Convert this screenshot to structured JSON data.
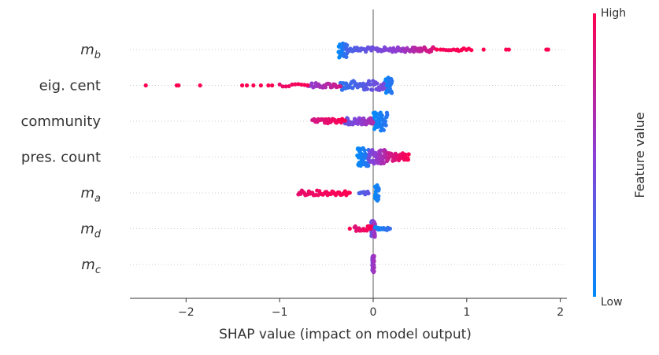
{
  "chart_data": {
    "type": "scatter",
    "subtype": "shap-beeswarm",
    "xlabel": "SHAP value (impact on model output)",
    "xlim": [
      -2.6,
      2.07
    ],
    "xticks": [
      -2,
      -1,
      0,
      1,
      2
    ],
    "xtick_labels": [
      "−2",
      "−1",
      "0",
      "1",
      "2"
    ],
    "colorbar": {
      "title": "Feature value",
      "high_label": "High",
      "low_label": "Low",
      "low_color": "#008bfb",
      "high_color": "#ff0051"
    },
    "features": [
      {
        "label": "m",
        "sub": "b",
        "italic": true,
        "clusters": [
          {
            "from": -0.37,
            "to": -0.28,
            "n": 40,
            "spread": 10,
            "c0": 0.0,
            "c1": 0.2
          },
          {
            "from": -0.28,
            "to": 0.3,
            "n": 50,
            "spread": 3,
            "c0": 0.25,
            "c1": 0.55
          },
          {
            "from": 0.3,
            "to": 0.65,
            "n": 35,
            "spread": 3,
            "c0": 0.55,
            "c1": 0.85
          },
          {
            "from": 0.75,
            "to": 1.05,
            "n": 12,
            "spread": 2,
            "c0": 0.95,
            "c1": 1.0
          }
        ],
        "points": [
          1.18,
          1.42,
          1.45,
          1.85,
          1.87,
          0.68,
          0.72,
          0.9,
          0.95,
          1.0
        ]
      },
      {
        "label": "eig. cent",
        "sub": "",
        "italic": false,
        "clusters": [
          {
            "from": 0.12,
            "to": 0.2,
            "n": 40,
            "spread": 10,
            "c0": 0.0,
            "c1": 0.15
          },
          {
            "from": -0.35,
            "to": 0.12,
            "n": 55,
            "spread": 6,
            "c0": 0.15,
            "c1": 0.45
          },
          {
            "from": -0.7,
            "to": -0.35,
            "n": 25,
            "spread": 3,
            "c0": 0.5,
            "c1": 0.8
          },
          {
            "from": -1.0,
            "to": -0.7,
            "n": 10,
            "spread": 2,
            "c0": 0.9,
            "c1": 1.0
          }
        ],
        "points": [
          -2.43,
          -2.1,
          -2.08,
          -1.85,
          -1.4,
          -1.35,
          -1.28,
          -1.2,
          -1.12,
          -1.08
        ]
      },
      {
        "label": "community",
        "sub": "",
        "italic": false,
        "clusters": [
          {
            "from": 0.0,
            "to": 0.15,
            "n": 45,
            "spread": 12,
            "c0": 0.0,
            "c1": 0.15
          },
          {
            "from": -0.3,
            "to": 0.0,
            "n": 45,
            "spread": 4,
            "c0": 0.35,
            "c1": 0.65
          },
          {
            "from": -0.65,
            "to": -0.3,
            "n": 35,
            "spread": 3,
            "c0": 0.8,
            "c1": 1.0
          }
        ],
        "points": []
      },
      {
        "label": "pres. count",
        "sub": "",
        "italic": false,
        "clusters": [
          {
            "from": -0.17,
            "to": -0.05,
            "n": 50,
            "spread": 12,
            "c0": 0.0,
            "c1": 0.15
          },
          {
            "from": -0.05,
            "to": 0.15,
            "n": 55,
            "spread": 9,
            "c0": 0.4,
            "c1": 0.7
          },
          {
            "from": 0.15,
            "to": 0.38,
            "n": 40,
            "spread": 5,
            "c0": 0.75,
            "c1": 1.0
          }
        ],
        "points": []
      },
      {
        "label": "m",
        "sub": "a",
        "italic": true,
        "clusters": [
          {
            "from": 0.02,
            "to": 0.06,
            "n": 30,
            "spread": 10,
            "c0": 0.0,
            "c1": 0.1
          },
          {
            "from": -0.15,
            "to": -0.05,
            "n": 12,
            "spread": 2,
            "c0": 0.25,
            "c1": 0.35
          },
          {
            "from": -0.8,
            "to": -0.25,
            "n": 45,
            "spread": 3,
            "c0": 0.9,
            "c1": 1.0
          }
        ],
        "points": []
      },
      {
        "label": "m",
        "sub": "d",
        "italic": true,
        "clusters": [
          {
            "from": -0.02,
            "to": 0.02,
            "n": 45,
            "spread": 11,
            "c0": 0.3,
            "c1": 0.6
          },
          {
            "from": 0.02,
            "to": 0.18,
            "n": 15,
            "spread": 2,
            "c0": 0.0,
            "c1": 0.2
          },
          {
            "from": -0.2,
            "to": -0.02,
            "n": 20,
            "spread": 3,
            "c0": 0.85,
            "c1": 1.0
          }
        ],
        "points": [
          -0.25
        ]
      },
      {
        "label": "m",
        "sub": "c",
        "italic": true,
        "clusters": [
          {
            "from": -0.01,
            "to": 0.01,
            "n": 45,
            "spread": 11,
            "c0": 0.45,
            "c1": 0.6
          }
        ],
        "points": []
      }
    ]
  }
}
